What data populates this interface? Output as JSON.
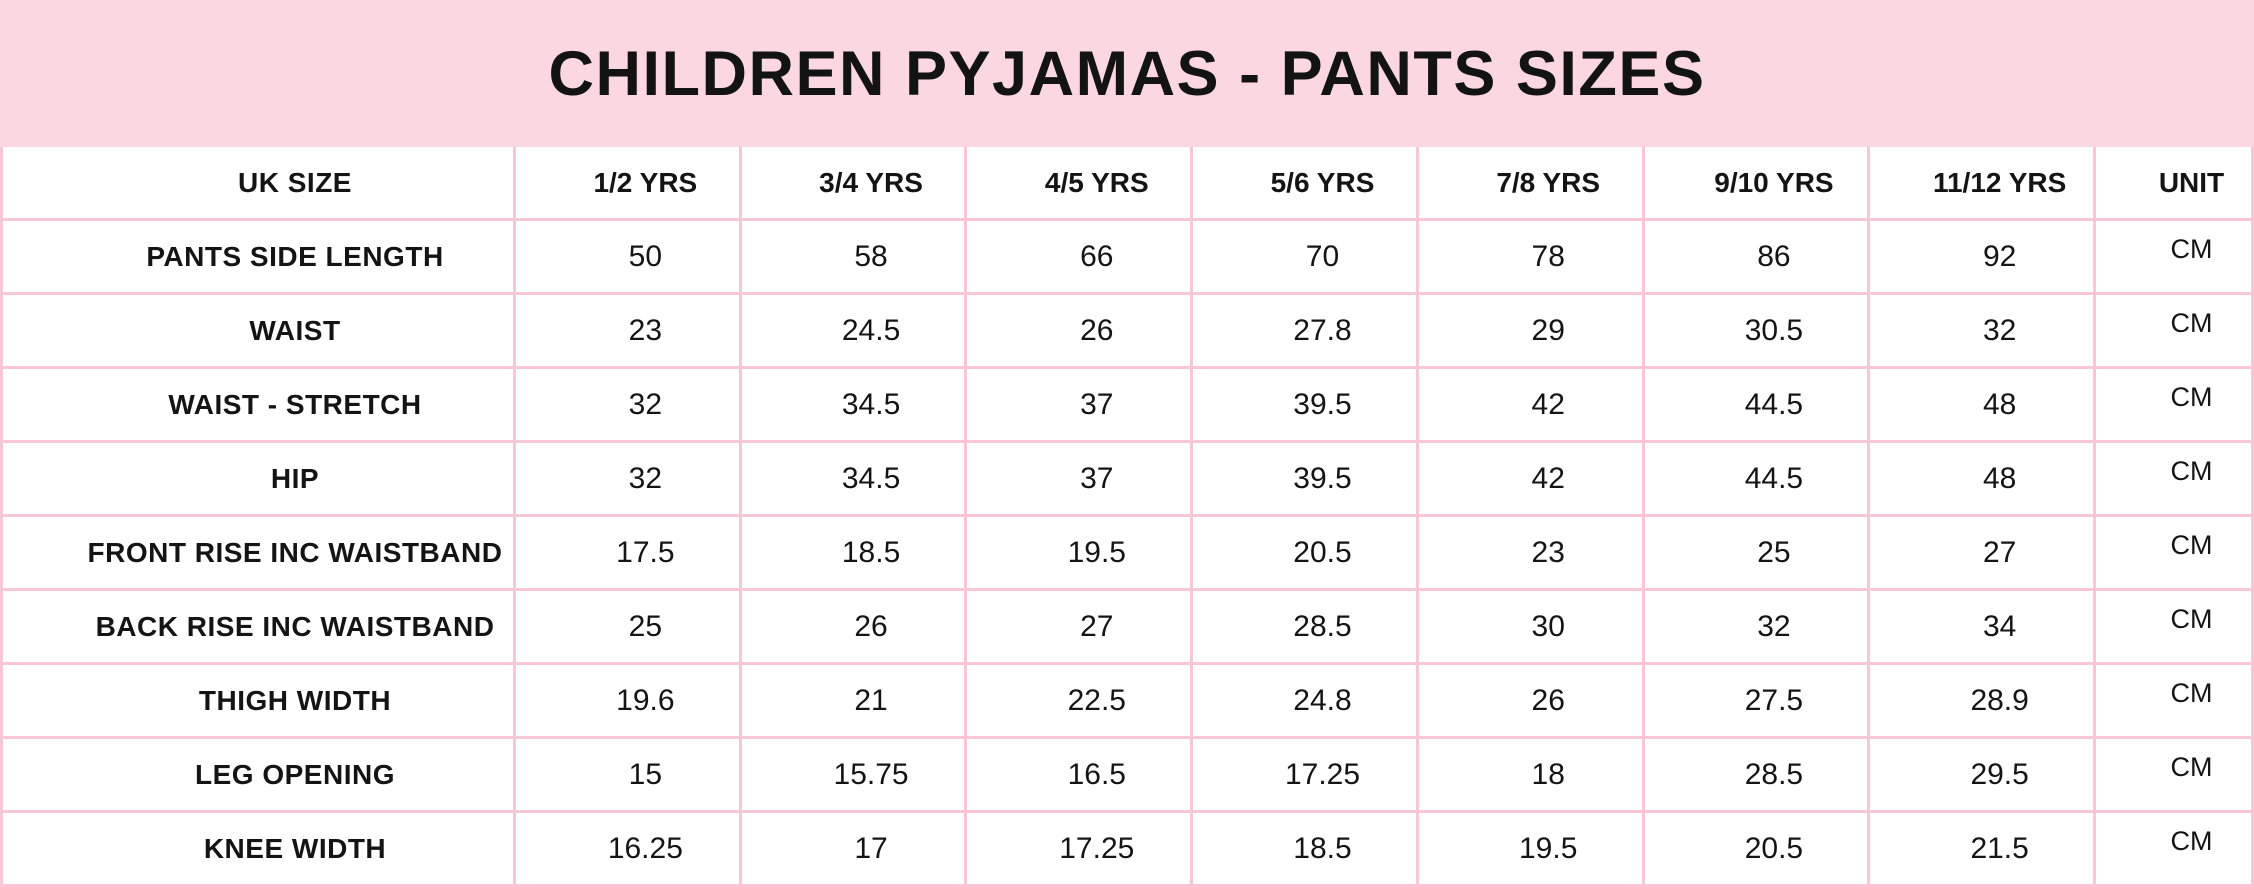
{
  "title": "CHILDREN PYJAMAS - PANTS SIZES",
  "colors": {
    "banner_bg": "#fbd7e1",
    "border": "#f8c6d7",
    "cell_bg": "#ffffff",
    "text": "#141414"
  },
  "table": {
    "columns": [
      "UK SIZE",
      "1/2 YRS",
      "3/4 YRS",
      "4/5 YRS",
      "5/6 YRS",
      "7/8 YRS",
      "9/10 YRS",
      "11/12 YRS",
      "UNIT"
    ],
    "rows": [
      {
        "label": "PANTS SIDE LENGTH",
        "values": [
          "50",
          "58",
          "66",
          "70",
          "78",
          "86",
          "92"
        ],
        "unit": "CM"
      },
      {
        "label": "WAIST",
        "values": [
          "23",
          "24.5",
          "26",
          "27.8",
          "29",
          "30.5",
          "32"
        ],
        "unit": "CM"
      },
      {
        "label": "WAIST - STRETCH",
        "values": [
          "32",
          "34.5",
          "37",
          "39.5",
          "42",
          "44.5",
          "48"
        ],
        "unit": "CM"
      },
      {
        "label": "HIP",
        "values": [
          "32",
          "34.5",
          "37",
          "39.5",
          "42",
          "44.5",
          "48"
        ],
        "unit": "CM"
      },
      {
        "label": "FRONT RISE INC WAISTBAND",
        "values": [
          "17.5",
          "18.5",
          "19.5",
          "20.5",
          "23",
          "25",
          "27"
        ],
        "unit": "CM"
      },
      {
        "label": "BACK RISE INC WAISTBAND",
        "values": [
          "25",
          "26",
          "27",
          "28.5",
          "30",
          "32",
          "34"
        ],
        "unit": "CM"
      },
      {
        "label": "THIGH WIDTH",
        "values": [
          "19.6",
          "21",
          "22.5",
          "24.8",
          "26",
          "27.5",
          "28.9"
        ],
        "unit": "CM"
      },
      {
        "label": "LEG OPENING",
        "values": [
          "15",
          "15.75",
          "16.5",
          "17.25",
          "18",
          "28.5",
          "29.5"
        ],
        "unit": "CM"
      },
      {
        "label": "KNEE WIDTH",
        "values": [
          "16.25",
          "17",
          "17.25",
          "18.5",
          "19.5",
          "20.5",
          "21.5"
        ],
        "unit": "CM"
      }
    ]
  }
}
